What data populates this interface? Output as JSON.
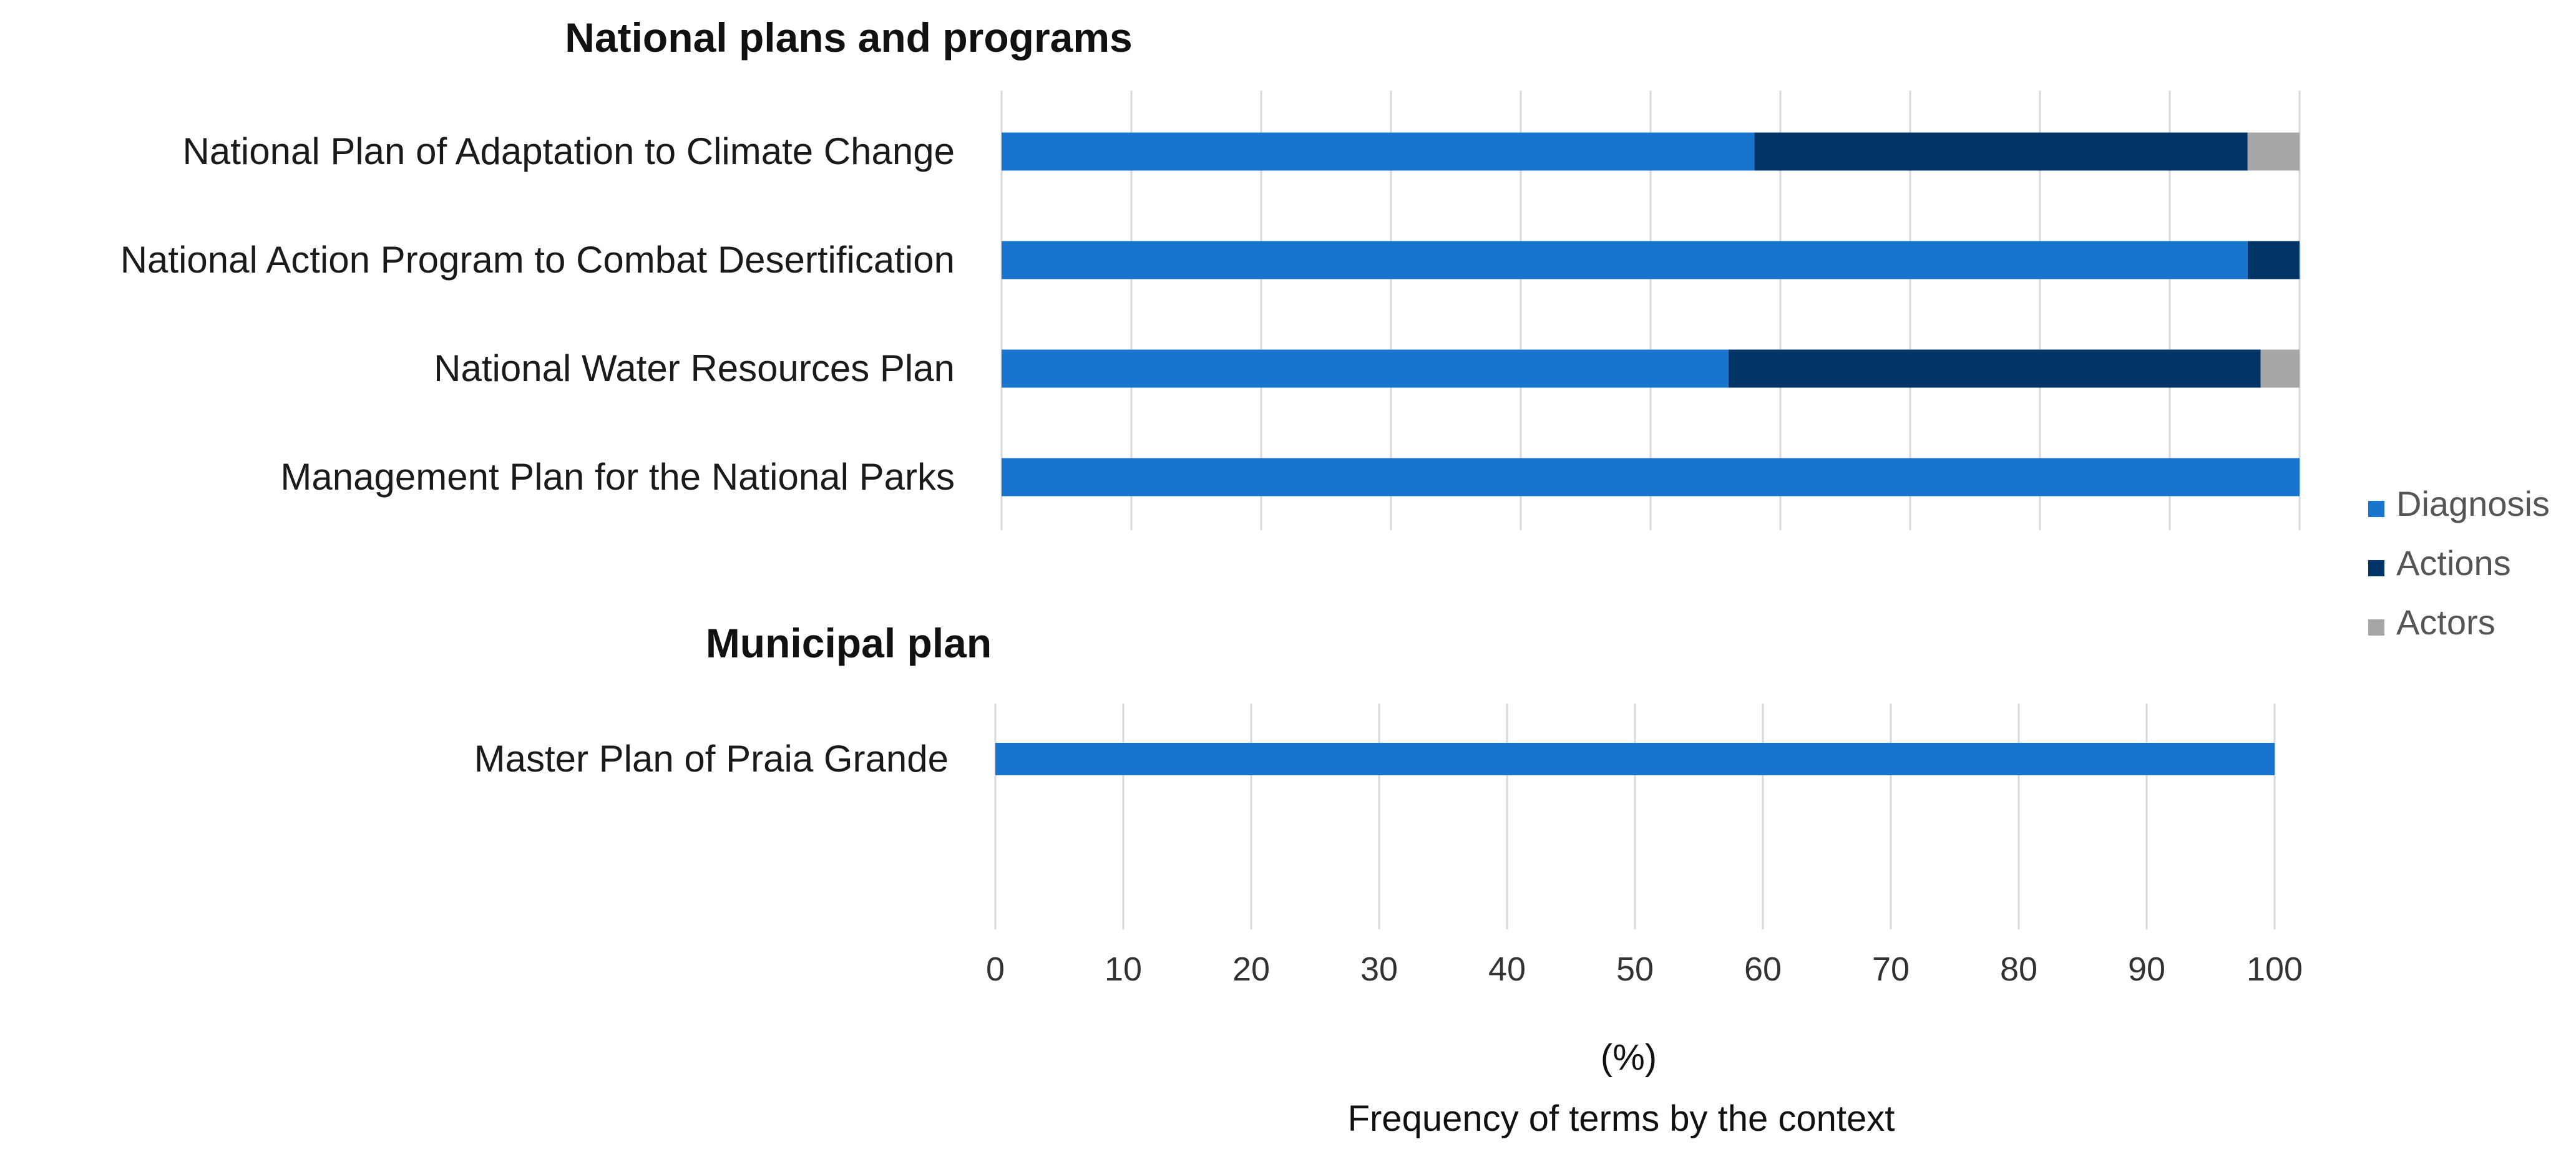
{
  "chart_data": {
    "type": "bar",
    "orientation": "horizontal",
    "stacked": true,
    "xlabel_unit": "(%)",
    "xlabel": "Frequency of terms by the context",
    "xlim": [
      0,
      100
    ],
    "xticks": [
      "0",
      "10",
      "20",
      "30",
      "40",
      "50",
      "60",
      "70",
      "80",
      "90",
      "100"
    ],
    "legend": {
      "position": "right",
      "entries": [
        {
          "name": "Diagnosis",
          "color": "#1874cd"
        },
        {
          "name": "Actions",
          "color": "#003366"
        },
        {
          "name": "Actors",
          "color": "#a6a6a6"
        }
      ]
    },
    "panels": [
      {
        "title": "National plans and programs",
        "categories": [
          "National Plan of Adaptation to Climate Change",
          "National Action Program to Combat Desertification",
          "National Water Resources Plan",
          "Management Plan for the National Parks"
        ],
        "series": [
          {
            "name": "Diagnosis",
            "values": [
              58,
              96,
              56,
              100
            ]
          },
          {
            "name": "Actions",
            "values": [
              38,
              4,
              41,
              0
            ]
          },
          {
            "name": "Actors",
            "values": [
              4,
              0,
              3,
              0
            ]
          }
        ]
      },
      {
        "title": "Municipal plan",
        "categories": [
          "Master Plan of Praia Grande"
        ],
        "series": [
          {
            "name": "Diagnosis",
            "values": [
              100
            ]
          },
          {
            "name": "Actions",
            "values": [
              0
            ]
          },
          {
            "name": "Actors",
            "values": [
              0
            ]
          }
        ]
      }
    ]
  }
}
